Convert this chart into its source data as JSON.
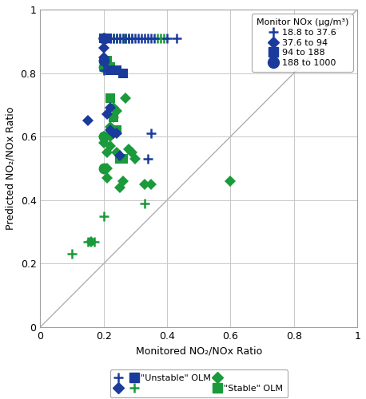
{
  "title": "",
  "xlabel": "Monitored NO₂/NOx Ratio",
  "ylabel": "Predicted NO₂/NOx Ratio",
  "xlim": [
    0,
    1
  ],
  "ylim": [
    0,
    1
  ],
  "xticks": [
    0,
    0.2,
    0.4,
    0.6,
    0.8,
    1
  ],
  "yticks": [
    0,
    0.2,
    0.4,
    0.6,
    0.8,
    1
  ],
  "background_color": "#ffffff",
  "grid_color": "#c8c8c8",
  "unstable_color": "#1a3a9c",
  "stable_color": "#1a9a3a",
  "legend1_title": "Monitor NOx (μg/m³)",
  "legend1_entries": [
    "18.8 to 37.6",
    "37.6 to 94",
    "94 to 188",
    "188 to 1000"
  ],
  "unstable_cross": [
    [
      0.2,
      0.81
    ],
    [
      0.22,
      0.91
    ],
    [
      0.23,
      0.91
    ],
    [
      0.24,
      0.91
    ],
    [
      0.25,
      0.91
    ],
    [
      0.26,
      0.91
    ],
    [
      0.27,
      0.91
    ],
    [
      0.28,
      0.91
    ],
    [
      0.29,
      0.91
    ],
    [
      0.3,
      0.91
    ],
    [
      0.31,
      0.91
    ],
    [
      0.32,
      0.91
    ],
    [
      0.33,
      0.91
    ],
    [
      0.34,
      0.91
    ],
    [
      0.35,
      0.91
    ],
    [
      0.36,
      0.91
    ],
    [
      0.4,
      0.91
    ],
    [
      0.43,
      0.91
    ],
    [
      0.34,
      0.53
    ],
    [
      0.35,
      0.61
    ]
  ],
  "unstable_diamond": [
    [
      0.15,
      0.65
    ],
    [
      0.2,
      0.91
    ],
    [
      0.2,
      0.88
    ],
    [
      0.2,
      0.85
    ],
    [
      0.21,
      0.67
    ],
    [
      0.22,
      0.69
    ],
    [
      0.22,
      0.62
    ],
    [
      0.23,
      0.61
    ],
    [
      0.24,
      0.61
    ],
    [
      0.25,
      0.54
    ]
  ],
  "unstable_square": [
    [
      0.2,
      0.91
    ],
    [
      0.21,
      0.91
    ],
    [
      0.22,
      0.81
    ],
    [
      0.24,
      0.81
    ],
    [
      0.26,
      0.8
    ]
  ],
  "unstable_circle": [
    [
      0.2,
      0.91
    ],
    [
      0.2,
      0.84
    ]
  ],
  "stable_cross": [
    [
      0.1,
      0.23
    ],
    [
      0.15,
      0.27
    ],
    [
      0.17,
      0.27
    ],
    [
      0.2,
      0.35
    ],
    [
      0.2,
      0.91
    ],
    [
      0.21,
      0.91
    ],
    [
      0.22,
      0.91
    ],
    [
      0.23,
      0.91
    ],
    [
      0.24,
      0.91
    ],
    [
      0.25,
      0.91
    ],
    [
      0.26,
      0.91
    ],
    [
      0.27,
      0.91
    ],
    [
      0.28,
      0.91
    ],
    [
      0.29,
      0.91
    ],
    [
      0.37,
      0.91
    ],
    [
      0.38,
      0.91
    ],
    [
      0.39,
      0.91
    ],
    [
      0.33,
      0.39
    ]
  ],
  "stable_diamond": [
    [
      0.16,
      0.27
    ],
    [
      0.2,
      0.6
    ],
    [
      0.2,
      0.58
    ],
    [
      0.21,
      0.55
    ],
    [
      0.21,
      0.5
    ],
    [
      0.21,
      0.47
    ],
    [
      0.22,
      0.63
    ],
    [
      0.22,
      0.6
    ],
    [
      0.22,
      0.57
    ],
    [
      0.23,
      0.69
    ],
    [
      0.23,
      0.66
    ],
    [
      0.23,
      0.62
    ],
    [
      0.24,
      0.68
    ],
    [
      0.24,
      0.55
    ],
    [
      0.25,
      0.44
    ],
    [
      0.26,
      0.46
    ],
    [
      0.27,
      0.72
    ],
    [
      0.28,
      0.56
    ],
    [
      0.29,
      0.55
    ],
    [
      0.3,
      0.53
    ],
    [
      0.33,
      0.45
    ],
    [
      0.35,
      0.45
    ],
    [
      0.6,
      0.46
    ]
  ],
  "stable_square": [
    [
      0.2,
      0.91
    ],
    [
      0.21,
      0.91
    ],
    [
      0.21,
      0.84
    ],
    [
      0.22,
      0.82
    ],
    [
      0.22,
      0.72
    ],
    [
      0.23,
      0.66
    ],
    [
      0.24,
      0.62
    ],
    [
      0.25,
      0.53
    ],
    [
      0.26,
      0.53
    ]
  ],
  "stable_circle": [
    [
      0.2,
      0.91
    ],
    [
      0.2,
      0.82
    ],
    [
      0.2,
      0.6
    ],
    [
      0.2,
      0.5
    ]
  ]
}
